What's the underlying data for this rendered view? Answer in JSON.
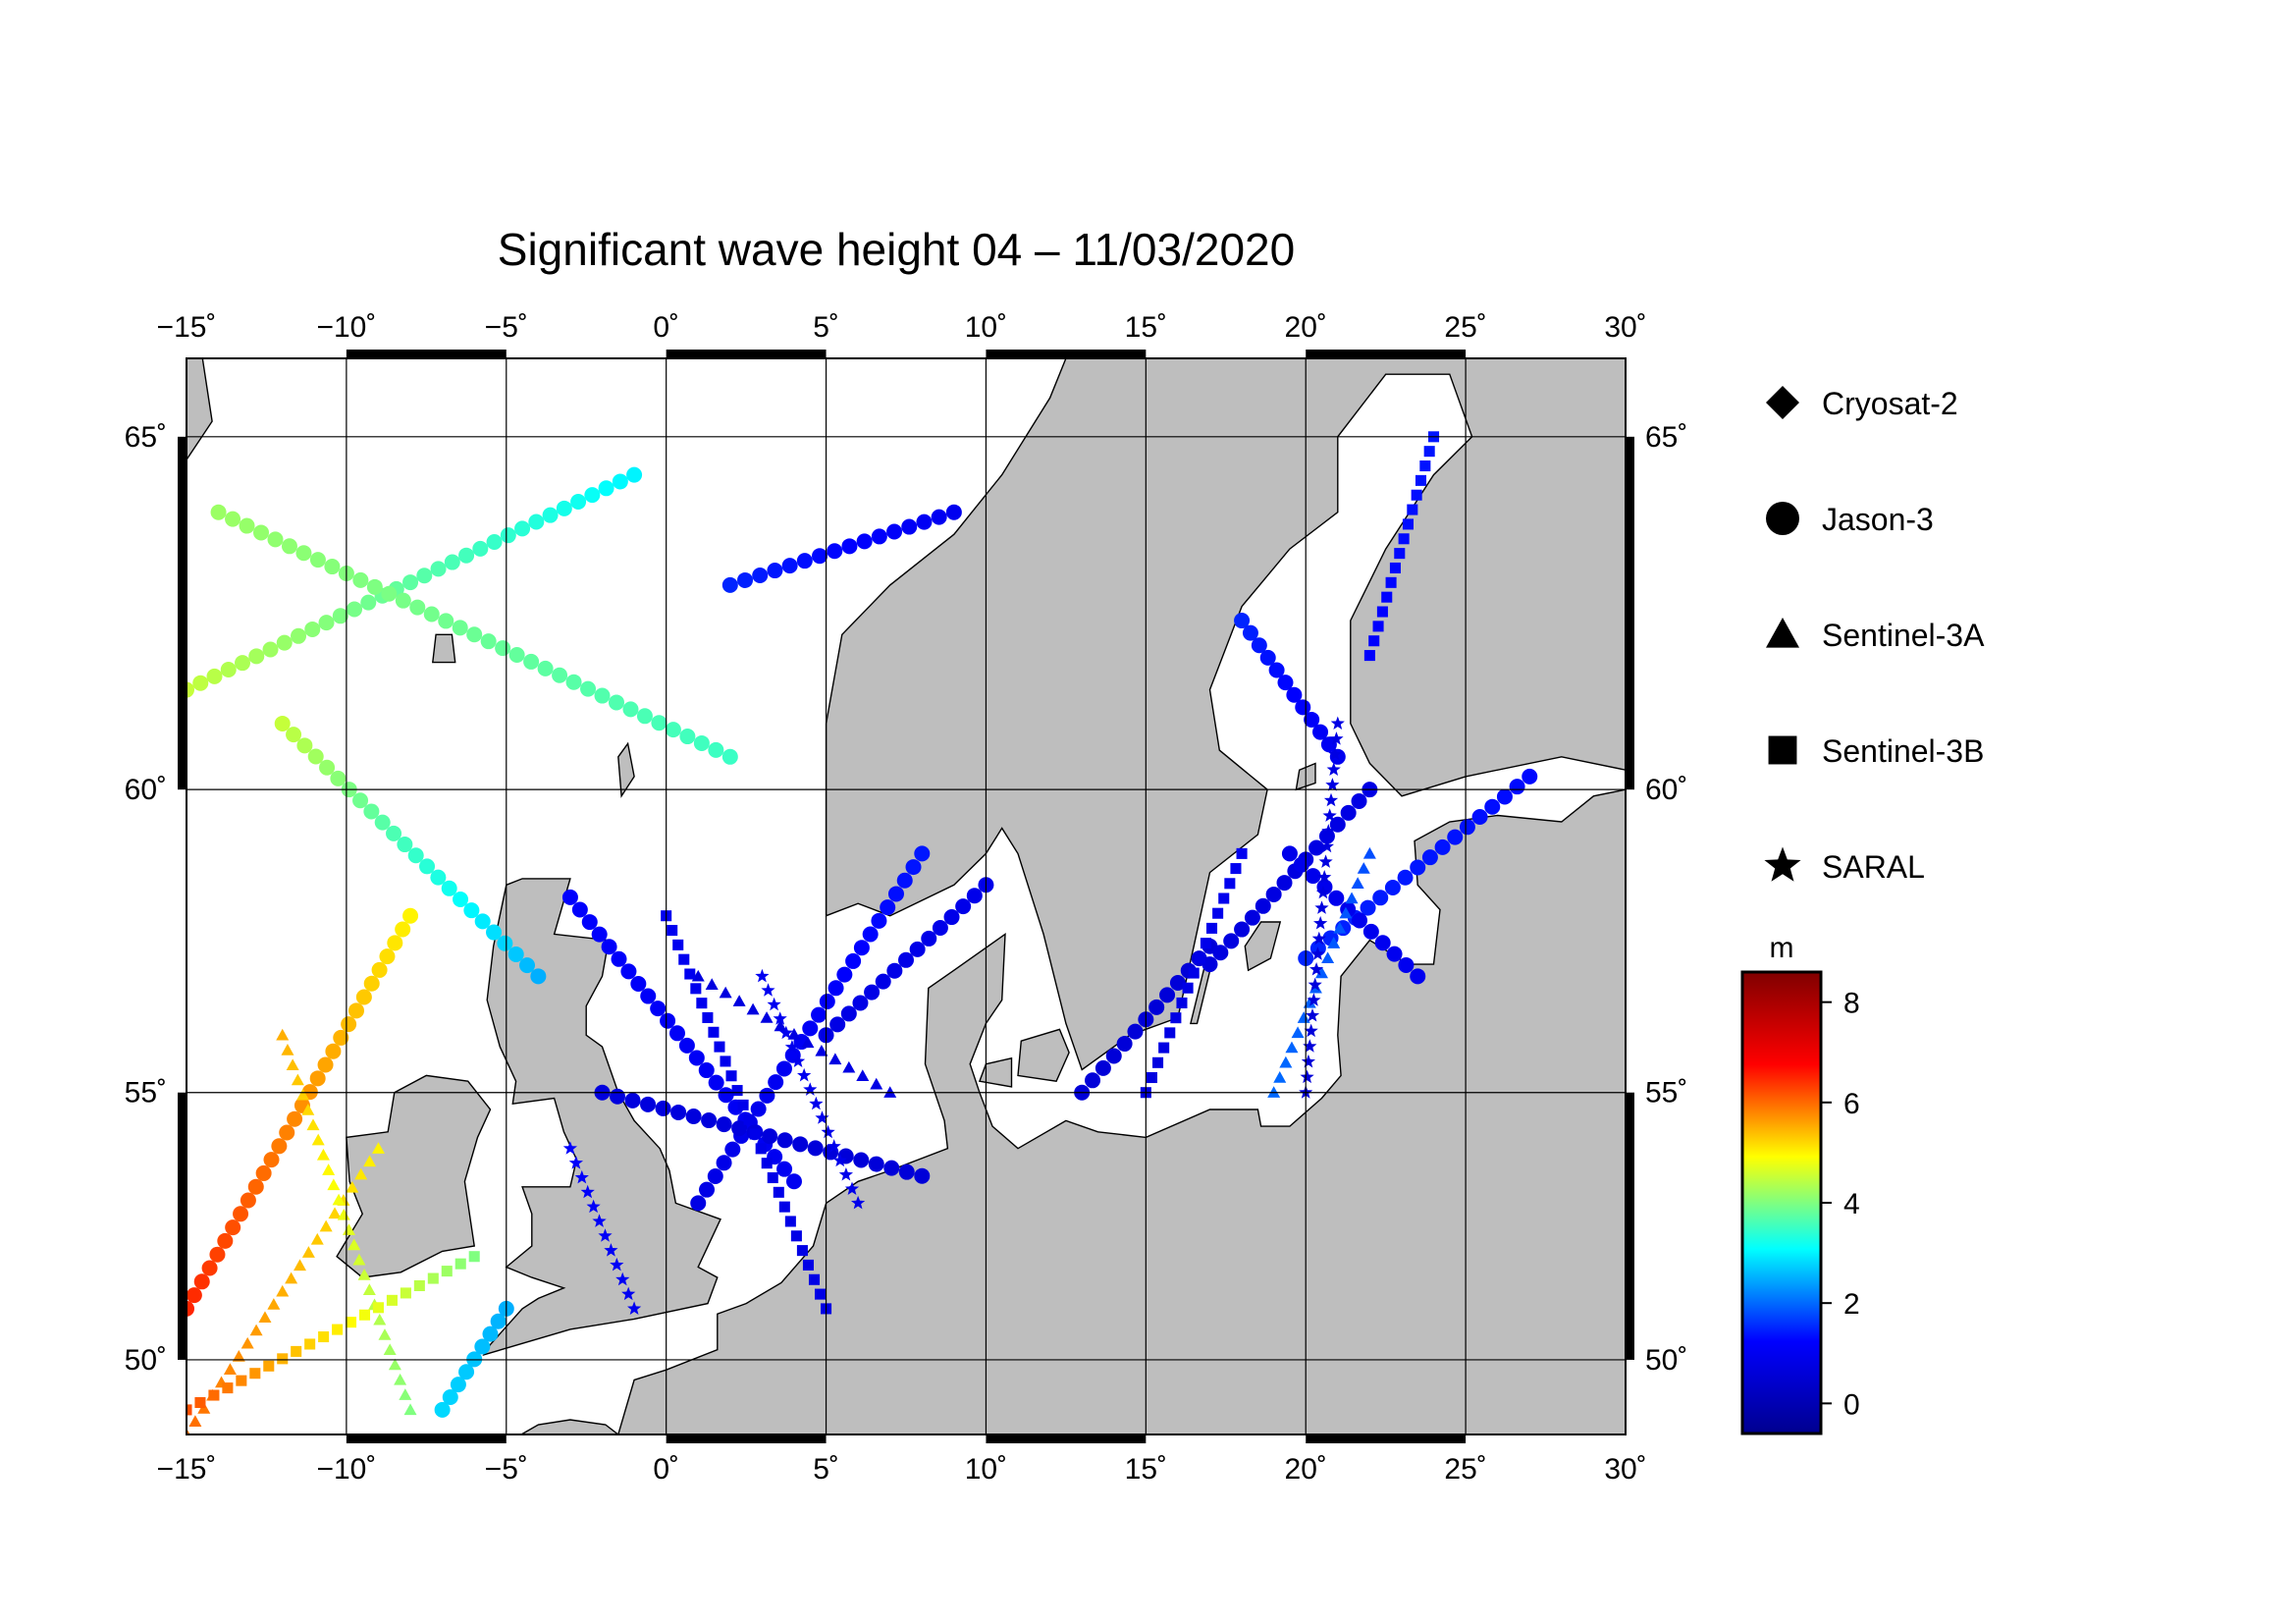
{
  "title": "Significant wave height 04 – 11/03/2020",
  "map": {
    "lon_range": [
      -15,
      30
    ],
    "lat_range": [
      48.5,
      66
    ],
    "lon_ticks": [
      -15,
      -10,
      -5,
      0,
      5,
      10,
      15,
      20,
      25,
      30
    ],
    "lon_tick_labels": [
      "−15˚",
      "−10˚",
      "−5˚",
      "0˚",
      "5˚",
      "10˚",
      "15˚",
      "20˚",
      "25˚",
      "30˚"
    ],
    "lat_ticks": [
      50,
      55,
      60,
      65
    ],
    "lat_tick_labels": [
      "50˚",
      "55˚",
      "60˚",
      "65˚"
    ],
    "ocean_color": "#ffffff",
    "land_color": "#bebebe",
    "grid": true
  },
  "legend": {
    "items": [
      {
        "label": "Cryosat-2",
        "symbol": "diamond"
      },
      {
        "label": "Jason-3",
        "symbol": "circle"
      },
      {
        "label": "Sentinel-3A",
        "symbol": "triangle"
      },
      {
        "label": "Sentinel-3B",
        "symbol": "square"
      },
      {
        "label": "SARAL",
        "symbol": "star"
      }
    ]
  },
  "colorbar": {
    "unit": "m",
    "range": [
      -0.6,
      8.6
    ],
    "ticks": [
      0,
      2,
      4,
      6,
      8
    ],
    "tick_labels": [
      "0",
      "2",
      "4",
      "6",
      "8"
    ],
    "colormap": [
      "#00008f",
      "#0000ff",
      "#00ffff",
      "#ffff00",
      "#ff0000",
      "#800000"
    ]
  },
  "chart_data": {
    "type": "scatter",
    "title": "Significant wave height 04 – 11/03/2020",
    "x_unit": "degrees longitude",
    "y_unit": "degrees latitude",
    "color_unit": "m",
    "tracks": [
      {
        "series": "Jason-3",
        "lon": [
          -15,
          -1
        ],
        "lat": [
          61.5,
          64.5
        ],
        "swh": [
          4.5,
          3.0
        ]
      },
      {
        "series": "Jason-3",
        "lon": [
          -14,
          2
        ],
        "lat": [
          64,
          60.5
        ],
        "swh": [
          4.2,
          3.5
        ]
      },
      {
        "series": "Jason-3",
        "lon": [
          -15,
          -8
        ],
        "lat": [
          51,
          58
        ],
        "swh": [
          6.5,
          5.0
        ]
      },
      {
        "series": "Jason-3",
        "lon": [
          -12,
          -4
        ],
        "lat": [
          61,
          57
        ],
        "swh": [
          4.5,
          2.5
        ]
      },
      {
        "series": "Jason-3",
        "lon": [
          -7,
          -5
        ],
        "lat": [
          49,
          51
        ],
        "swh": [
          2.8,
          2.5
        ]
      },
      {
        "series": "Jason-3",
        "lon": [
          -3,
          4
        ],
        "lat": [
          58.3,
          53.4
        ],
        "swh": [
          1.2,
          1.0
        ]
      },
      {
        "series": "Jason-3",
        "lon": [
          1,
          8
        ],
        "lat": [
          53,
          59
        ],
        "swh": [
          0.8,
          1.4
        ]
      },
      {
        "series": "Jason-3",
        "lon": [
          -2,
          8
        ],
        "lat": [
          55,
          53.5
        ],
        "swh": [
          0.7,
          0.6
        ]
      },
      {
        "series": "Jason-3",
        "lon": [
          2,
          9
        ],
        "lat": [
          63,
          64
        ],
        "swh": [
          1.5,
          1.0
        ]
      },
      {
        "series": "Jason-3",
        "lon": [
          5,
          10
        ],
        "lat": [
          56,
          58.5
        ],
        "swh": [
          0.8,
          0.9
        ]
      },
      {
        "series": "Jason-3",
        "lon": [
          13,
          17
        ],
        "lat": [
          55,
          57.5
        ],
        "swh": [
          0.6,
          0.6
        ]
      },
      {
        "series": "Jason-3",
        "lon": [
          17,
          22
        ],
        "lat": [
          57.2,
          60
        ],
        "swh": [
          0.7,
          0.8
        ]
      },
      {
        "series": "Jason-3",
        "lon": [
          18,
          21
        ],
        "lat": [
          62.5,
          60.5
        ],
        "swh": [
          1.5,
          1.0
        ]
      },
      {
        "series": "Jason-3",
        "lon": [
          20,
          27
        ],
        "lat": [
          57.3,
          60.2
        ],
        "swh": [
          1.5,
          1.3
        ]
      },
      {
        "series": "Jason-3",
        "lon": [
          19.5,
          23.5
        ],
        "lat": [
          59,
          57
        ],
        "swh": [
          0.9,
          1.0
        ]
      },
      {
        "series": "Sentinel-3A",
        "lon": [
          -15,
          -9
        ],
        "lat": [
          48.5,
          54
        ],
        "swh": [
          6.0,
          5.0
        ]
      },
      {
        "series": "Sentinel-3A",
        "lon": [
          -12,
          -8
        ],
        "lat": [
          56,
          49
        ],
        "swh": [
          5.5,
          4.0
        ]
      },
      {
        "series": "Sentinel-3A",
        "lon": [
          1,
          7
        ],
        "lat": [
          57,
          55
        ],
        "swh": [
          0.7,
          0.8
        ]
      },
      {
        "series": "Sentinel-3A",
        "lon": [
          19,
          22
        ],
        "lat": [
          55,
          59
        ],
        "swh": [
          2.0,
          1.8
        ]
      },
      {
        "series": "Sentinel-3B",
        "lon": [
          -15,
          -6
        ],
        "lat": [
          49,
          52
        ],
        "swh": [
          6.2,
          4.0
        ]
      },
      {
        "series": "Sentinel-3B",
        "lon": [
          0,
          5
        ],
        "lat": [
          58,
          51
        ],
        "swh": [
          1.0,
          0.8
        ]
      },
      {
        "series": "Sentinel-3B",
        "lon": [
          15,
          18
        ],
        "lat": [
          55,
          59
        ],
        "swh": [
          0.7,
          1.0
        ]
      },
      {
        "series": "Sentinel-3B",
        "lon": [
          22,
          24
        ],
        "lat": [
          62,
          65
        ],
        "swh": [
          1.2,
          1.4
        ]
      },
      {
        "series": "SARAL",
        "lon": [
          3,
          6
        ],
        "lat": [
          57,
          53
        ],
        "swh": [
          1.0,
          0.9
        ]
      },
      {
        "series": "SARAL",
        "lon": [
          20,
          21
        ],
        "lat": [
          55,
          61
        ],
        "swh": [
          0.6,
          0.8
        ]
      },
      {
        "series": "SARAL",
        "lon": [
          -3,
          -1
        ],
        "lat": [
          54,
          51
        ],
        "swh": [
          1.2,
          1.0
        ]
      }
    ]
  }
}
